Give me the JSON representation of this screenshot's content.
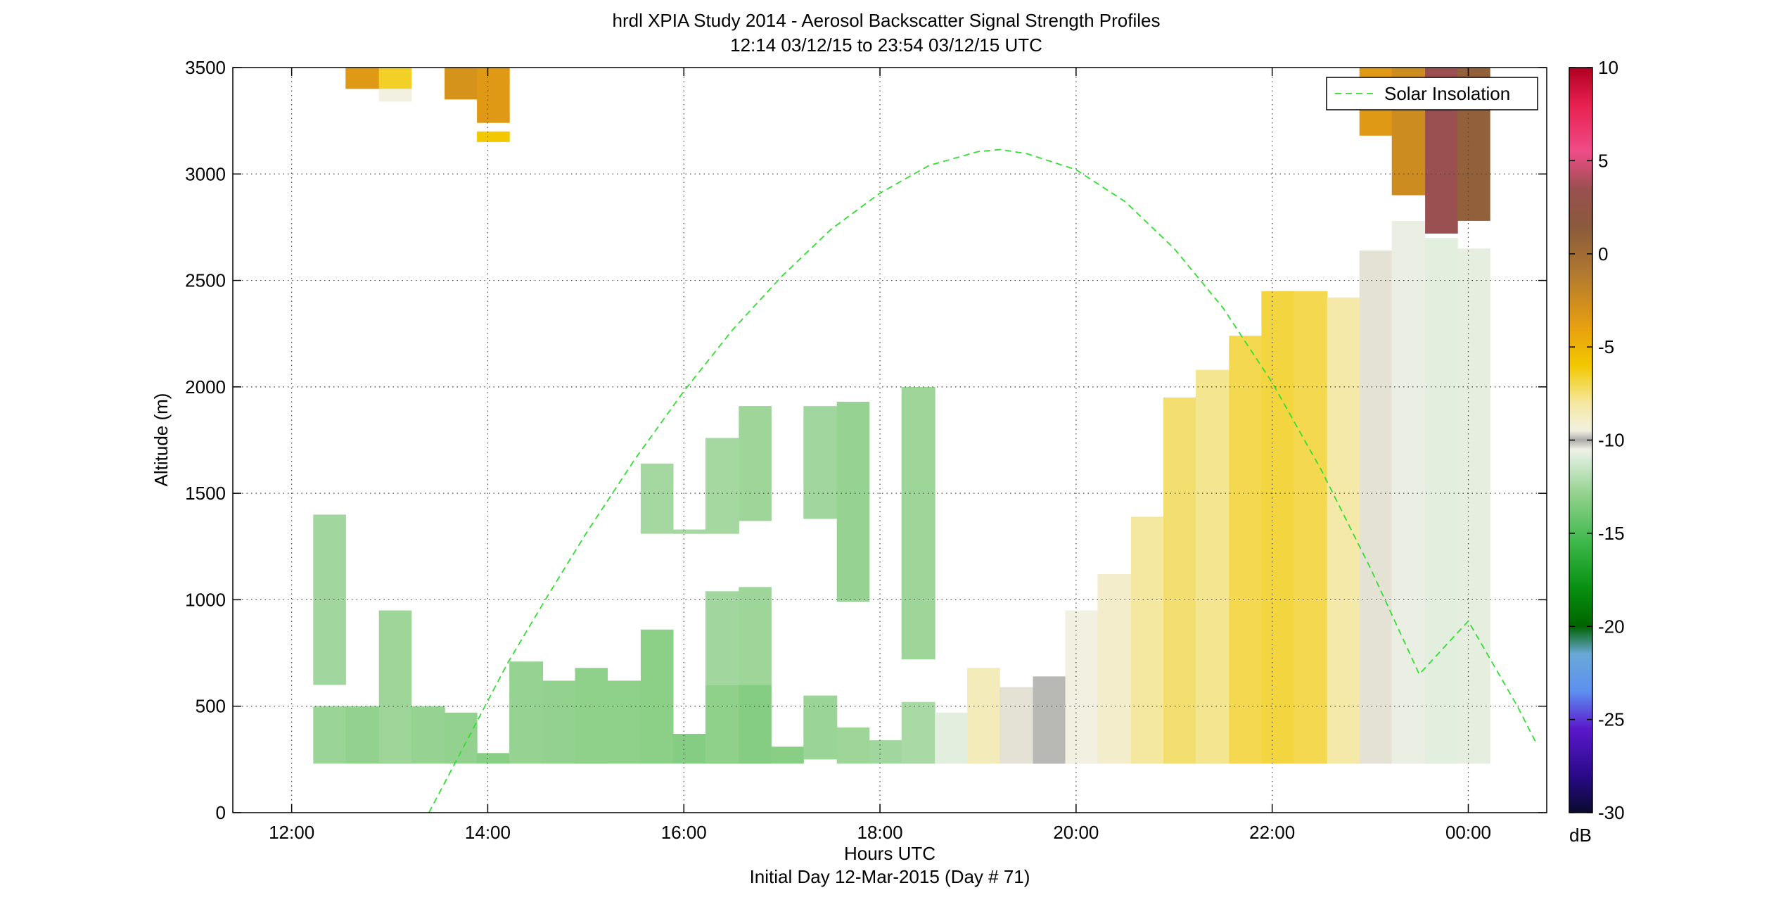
{
  "chart_data": {
    "type": "heatmap",
    "title": "hrdl XPIA Study 2014 - Aerosol Backscatter Signal Strength Profiles",
    "subtitle": "12:14 03/12/15 to 23:54 03/12/15  UTC",
    "xlabel": "Hours UTC",
    "xlabel2": "Initial Day 12-Mar-2015 (Day # 71)",
    "ylabel": "Altitude (m)",
    "x_unit": "hours UTC",
    "xlim": [
      11.4,
      24.8
    ],
    "ylim": [
      0,
      3500
    ],
    "xticks": [
      12,
      14,
      16,
      18,
      20,
      22,
      24
    ],
    "xtick_labels": [
      "12:00",
      "14:00",
      "16:00",
      "18:00",
      "20:00",
      "22:00",
      "00:00"
    ],
    "yticks": [
      0,
      500,
      1000,
      1500,
      2000,
      2500,
      3000,
      3500
    ],
    "ytick_labels": [
      "0",
      "500",
      "1000",
      "1500",
      "2000",
      "2500",
      "3000",
      "3500"
    ],
    "grid": true,
    "legend": {
      "entries": [
        "Solar Insolation"
      ],
      "placement": "top-right"
    },
    "colorbar": {
      "label": "dB",
      "range": [
        -30,
        10
      ],
      "ticks": [
        10,
        5,
        0,
        -5,
        -10,
        -15,
        -20,
        -25,
        -30
      ],
      "tick_labels": [
        "10",
        "5",
        "0",
        "-5",
        "-10",
        "-15",
        "-20",
        "-25",
        "-30"
      ],
      "stops": [
        {
          "v": -30,
          "color": "#0a0a30"
        },
        {
          "v": -28,
          "color": "#2a0a88"
        },
        {
          "v": -25.5,
          "color": "#5a18cc"
        },
        {
          "v": -23.5,
          "color": "#5d8ff0"
        },
        {
          "v": -21.5,
          "color": "#6aa8d8"
        },
        {
          "v": -20,
          "color": "#006400"
        },
        {
          "v": -18,
          "color": "#078f10"
        },
        {
          "v": -15.5,
          "color": "#3cb84a"
        },
        {
          "v": -13,
          "color": "#8fd08a"
        },
        {
          "v": -11,
          "color": "#d8ecd8"
        },
        {
          "v": -10.5,
          "color": "#f0f0e6"
        },
        {
          "v": -10,
          "color": "#aaaaaa"
        },
        {
          "v": -9.5,
          "color": "#f2f0e0"
        },
        {
          "v": -8,
          "color": "#f4e8a0"
        },
        {
          "v": -6,
          "color": "#f2c800"
        },
        {
          "v": -4,
          "color": "#e8a010"
        },
        {
          "v": -1,
          "color": "#b07830"
        },
        {
          "v": 1.5,
          "color": "#8a5a3c"
        },
        {
          "v": 3.5,
          "color": "#9a5050"
        },
        {
          "v": 5.5,
          "color": "#f04c88"
        },
        {
          "v": 8,
          "color": "#e82050"
        },
        {
          "v": 10,
          "color": "#b00020"
        }
      ]
    },
    "series": [
      {
        "name": "Solar Insolation",
        "style": "dashed",
        "color": "#33dd33",
        "x": [
          13.4,
          13.8,
          14.2,
          14.6,
          15.0,
          15.5,
          16.0,
          16.5,
          17.0,
          17.5,
          18.0,
          18.5,
          19.0,
          19.23,
          19.5,
          20.0,
          20.5,
          21.0,
          21.5,
          22.0,
          22.5,
          23.0,
          23.5,
          24.0,
          24.5,
          24.7
        ],
        "y": [
          0,
          350,
          700,
          1010,
          1310,
          1660,
          1980,
          2270,
          2520,
          2740,
          2910,
          3040,
          3105,
          3115,
          3095,
          3020,
          2870,
          2650,
          2370,
          2020,
          1610,
          1150,
          650,
          900,
          500,
          320
        ]
      }
    ],
    "heatmap_columns": [
      {
        "x": [
          12.22,
          12.55
        ],
        "segs": [
          [
            600,
            1400,
            -12.5
          ],
          [
            230,
            500,
            -12.7
          ]
        ]
      },
      {
        "x": [
          12.55,
          12.89
        ],
        "segs": [
          [
            3400,
            3500,
            -3.5
          ],
          [
            230,
            500,
            -12.9
          ]
        ]
      },
      {
        "x": [
          12.89,
          13.22
        ],
        "segs": [
          [
            3400,
            3500,
            -6.5
          ],
          [
            3340,
            3400,
            -9.5
          ],
          [
            230,
            950,
            -12.6
          ]
        ]
      },
      {
        "x": [
          13.22,
          13.56
        ],
        "segs": [
          [
            230,
            500,
            -12.8
          ]
        ]
      },
      {
        "x": [
          13.56,
          13.89
        ],
        "segs": [
          [
            3350,
            3500,
            -3.0
          ],
          [
            230,
            470,
            -12.9
          ]
        ]
      },
      {
        "x": [
          13.89,
          14.22
        ],
        "segs": [
          [
            3240,
            3500,
            -3.5
          ],
          [
            3150,
            3200,
            -6.0
          ],
          [
            230,
            280,
            -13.2
          ]
        ]
      },
      {
        "x": [
          14.22,
          14.56
        ],
        "segs": [
          [
            230,
            710,
            -12.8
          ]
        ]
      },
      {
        "x": [
          14.56,
          14.89
        ],
        "segs": [
          [
            230,
            620,
            -12.9
          ]
        ]
      },
      {
        "x": [
          14.89,
          15.22
        ],
        "segs": [
          [
            230,
            680,
            -13.0
          ]
        ]
      },
      {
        "x": [
          15.22,
          15.56
        ],
        "segs": [
          [
            230,
            620,
            -13.0
          ]
        ]
      },
      {
        "x": [
          15.56,
          15.89
        ],
        "segs": [
          [
            1310,
            1640,
            -12.4
          ],
          [
            230,
            860,
            -13.1
          ]
        ]
      },
      {
        "x": [
          15.89,
          16.22
        ],
        "segs": [
          [
            1310,
            1330,
            -12.4
          ],
          [
            230,
            370,
            -13.3
          ]
        ]
      },
      {
        "x": [
          16.22,
          16.56
        ],
        "segs": [
          [
            1310,
            1760,
            -12.4
          ],
          [
            600,
            1040,
            -12.5
          ],
          [
            230,
            600,
            -13.0
          ]
        ]
      },
      {
        "x": [
          16.56,
          16.89
        ],
        "segs": [
          [
            1370,
            1910,
            -12.6
          ],
          [
            600,
            1060,
            -12.6
          ],
          [
            230,
            600,
            -13.3
          ]
        ]
      },
      {
        "x": [
          16.89,
          17.22
        ],
        "segs": [
          [
            230,
            310,
            -13.2
          ]
        ]
      },
      {
        "x": [
          17.22,
          17.56
        ],
        "segs": [
          [
            1380,
            1910,
            -12.5
          ],
          [
            250,
            550,
            -12.7
          ]
        ]
      },
      {
        "x": [
          17.56,
          17.89
        ],
        "segs": [
          [
            990,
            1930,
            -12.8
          ],
          [
            230,
            400,
            -12.6
          ]
        ]
      },
      {
        "x": [
          17.89,
          18.22
        ],
        "segs": [
          [
            230,
            340,
            -12.5
          ]
        ]
      },
      {
        "x": [
          18.22,
          18.56
        ],
        "segs": [
          [
            720,
            2000,
            -12.6
          ],
          [
            230,
            520,
            -12.3
          ]
        ]
      },
      {
        "x": [
          18.56,
          18.89
        ],
        "segs": [
          [
            230,
            470,
            -10.8
          ]
        ]
      },
      {
        "x": [
          18.89,
          19.22
        ],
        "segs": [
          [
            230,
            680,
            -8.6
          ]
        ]
      },
      {
        "x": [
          19.22,
          19.56
        ],
        "segs": [
          [
            230,
            590,
            -9.6
          ]
        ]
      },
      {
        "x": [
          19.56,
          19.89
        ],
        "segs": [
          [
            230,
            640,
            -9.9
          ]
        ]
      },
      {
        "x": [
          19.89,
          20.22
        ],
        "segs": [
          [
            230,
            950,
            -9.5
          ]
        ]
      },
      {
        "x": [
          20.22,
          20.56
        ],
        "segs": [
          [
            230,
            1120,
            -9.0
          ]
        ]
      },
      {
        "x": [
          20.56,
          20.89
        ],
        "segs": [
          [
            230,
            1390,
            -8.0
          ]
        ]
      },
      {
        "x": [
          20.89,
          21.22
        ],
        "segs": [
          [
            230,
            1950,
            -7.4
          ]
        ]
      },
      {
        "x": [
          21.22,
          21.56
        ],
        "segs": [
          [
            230,
            2080,
            -7.8
          ]
        ]
      },
      {
        "x": [
          21.56,
          21.89
        ],
        "segs": [
          [
            230,
            2240,
            -7.0
          ]
        ]
      },
      {
        "x": [
          21.89,
          22.22
        ],
        "segs": [
          [
            230,
            2450,
            -6.8
          ]
        ]
      },
      {
        "x": [
          22.22,
          22.56
        ],
        "segs": [
          [
            230,
            2450,
            -7.0
          ]
        ]
      },
      {
        "x": [
          22.56,
          22.89
        ],
        "segs": [
          [
            230,
            2420,
            -8.2
          ]
        ]
      },
      {
        "x": [
          22.89,
          23.22
        ],
        "segs": [
          [
            3180,
            3500,
            -3.5
          ],
          [
            230,
            2640,
            -9.6
          ]
        ]
      },
      {
        "x": [
          23.22,
          23.56
        ],
        "segs": [
          [
            2900,
            3500,
            -2.5
          ],
          [
            230,
            2780,
            -10.6
          ]
        ]
      },
      {
        "x": [
          23.56,
          23.89
        ],
        "segs": [
          [
            2720,
            3500,
            3.5
          ],
          [
            230,
            2700,
            -10.8
          ]
        ]
      },
      {
        "x": [
          23.89,
          24.22
        ],
        "segs": [
          [
            2780,
            3500,
            1.0
          ],
          [
            230,
            2650,
            -10.7
          ]
        ]
      }
    ]
  }
}
